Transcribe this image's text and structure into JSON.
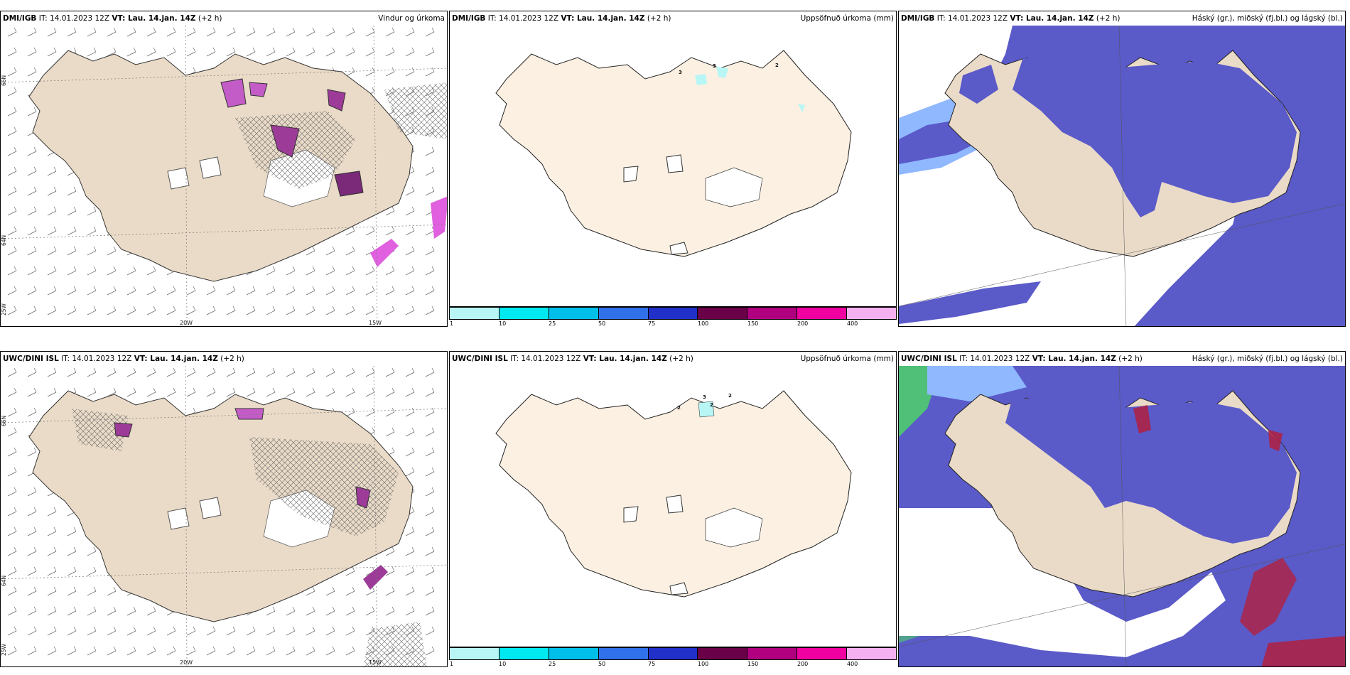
{
  "panels": {
    "tl": {
      "model": "DMI/IGB",
      "it": "IT: 14.01.2023 12Z",
      "vt": "VT: Lau. 14.jan. 14Z",
      "lead": "(+2 h)",
      "right": "Vindur og úrkoma"
    },
    "tm": {
      "model": "DMI/IGB",
      "it": "IT: 14.01.2023 12Z",
      "vt": "VT: Lau. 14.jan. 14Z",
      "lead": "(+2 h)",
      "right": "Uppsöfnuð úrkoma (mm)"
    },
    "tr": {
      "model": "DMI/IGB",
      "it": "IT: 14.01.2023 12Z",
      "vt": "VT: Lau. 14.jan. 14Z",
      "lead": "(+2 h)",
      "right": "Háský (gr.), miðský (fj.bl.) og lágský (bl.)"
    },
    "bl": {
      "model": "UWC/DINI ISL",
      "it": "IT: 14.01.2023 12Z",
      "vt": "VT: Lau. 14.jan. 14Z",
      "lead": "(+2 h)",
      "right": ""
    },
    "bm": {
      "model": "UWC/DINI ISL",
      "it": "IT: 14.01.2023 12Z",
      "vt": "VT: Lau. 14.jan. 14Z",
      "lead": "(+2 h)",
      "right": "Uppsöfnuð úrkoma (mm)"
    },
    "br": {
      "model": "UWC/DINI ISL",
      "it": "IT: 14.01.2023 12Z",
      "vt": "VT: Lau. 14.jan. 14Z",
      "lead": "(+2 h)",
      "right": "Háský (gr.), miðský (fj.bl.) og lágský (bl.)"
    }
  },
  "axes": {
    "lon_20": "20W",
    "lon_15": "15W",
    "lat_66": "66N",
    "lat_64": "64N",
    "lat_25": "25W"
  },
  "colorbar": {
    "labels": [
      "1",
      "10",
      "25",
      "50",
      "75",
      "100",
      "150",
      "200",
      "400"
    ],
    "colors": [
      "#b8f6f6",
      "#00e8f0",
      "#00c0ea",
      "#3070e8",
      "#2030c8",
      "#6a0048",
      "#b00080",
      "#f000a0",
      "#f4b0f0"
    ]
  },
  "precip_values": {
    "top": [
      "3",
      "3",
      "2"
    ],
    "bottom": [
      "2",
      "3",
      "2",
      "2"
    ]
  },
  "colors": {
    "land": "#eadbc8",
    "land_precip": "#fbf0e2",
    "cloud_low": "#5a5ac8",
    "cloud_light": "#8fb8ff",
    "cloud_mid": "#3c64d8",
    "cloud_high": "#b02040",
    "precip_purple": "#c45cc8",
    "green": "#50c078"
  }
}
